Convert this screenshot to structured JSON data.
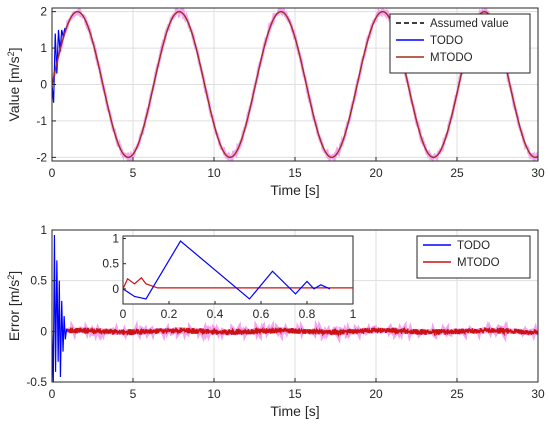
{
  "chart_data": [
    {
      "type": "line",
      "panel": "top",
      "xlabel": "Time [s]",
      "ylabel": "Value [m/s",
      "ylabel_sup": "2",
      "ylabel_end": "]",
      "xlim": [
        0,
        30
      ],
      "ylim": [
        -2.1,
        2.1
      ],
      "xticks": [
        0,
        5,
        10,
        15,
        20,
        25,
        30
      ],
      "yticks": [
        -2,
        -1,
        0,
        1,
        2
      ],
      "grid": true,
      "legend_position": "top-right",
      "signal": {
        "amplitude": 2,
        "period_s": 6.28
      },
      "series": [
        {
          "name": "Assumed value",
          "style": "dashed",
          "color": "#000000"
        },
        {
          "name": "TODO",
          "style": "solid",
          "color": "#0000ff"
        },
        {
          "name": "MTODO",
          "style": "solid",
          "color": "#a0301d"
        }
      ]
    },
    {
      "type": "line",
      "panel": "bottom",
      "xlabel": "Time [s]",
      "ylabel": "Error [m/s",
      "ylabel_sup": "2",
      "ylabel_end": "]",
      "xlim": [
        0,
        30
      ],
      "ylim": [
        -0.5,
        1
      ],
      "xticks": [
        0,
        5,
        10,
        15,
        20,
        25,
        30
      ],
      "yticks": [
        -0.5,
        0,
        0.5,
        1
      ],
      "ytick_labels": [
        "-0.5",
        "0",
        "0.5",
        "1"
      ],
      "grid": true,
      "legend_position": "top-right",
      "series": [
        {
          "name": "TODO",
          "color": "#0000ff",
          "x": [
            0,
            0.08,
            0.15,
            0.22,
            0.3,
            0.38,
            0.45,
            0.52,
            0.6,
            0.68,
            0.75,
            0.82,
            0.9
          ],
          "y": [
            0,
            -0.5,
            0.95,
            -0.4,
            0.7,
            -0.3,
            0.5,
            -0.45,
            0.3,
            -0.2,
            0.15,
            -0.08,
            0.02
          ]
        },
        {
          "name": "MTODO",
          "color": "#cc1111",
          "x": [
            0,
            30
          ],
          "y": [
            0,
            0
          ]
        }
      ],
      "inset": {
        "xlim": [
          0,
          1
        ],
        "ylim": [
          -0.3,
          1.05
        ],
        "xticks": [
          0,
          0.2,
          0.4,
          0.6,
          0.8,
          1
        ],
        "yticks": [
          0,
          0.5,
          1
        ],
        "series": [
          {
            "name": "TODO",
            "color": "#0000ff",
            "x": [
              0,
              0.05,
              0.1,
              0.25,
              0.55,
              0.65,
              0.75,
              0.8,
              0.83,
              0.86,
              0.9
            ],
            "y": [
              0,
              -0.15,
              -0.2,
              0.95,
              -0.2,
              0.35,
              -0.1,
              0.15,
              0.0,
              0.08,
              0.0
            ]
          },
          {
            "name": "MTODO",
            "color": "#cc1111",
            "x": [
              0,
              0.02,
              0.05,
              0.08,
              0.1,
              0.15,
              1
            ],
            "y": [
              0,
              0.2,
              0.1,
              0.22,
              0.1,
              0.02,
              0.02
            ]
          }
        ]
      }
    }
  ]
}
